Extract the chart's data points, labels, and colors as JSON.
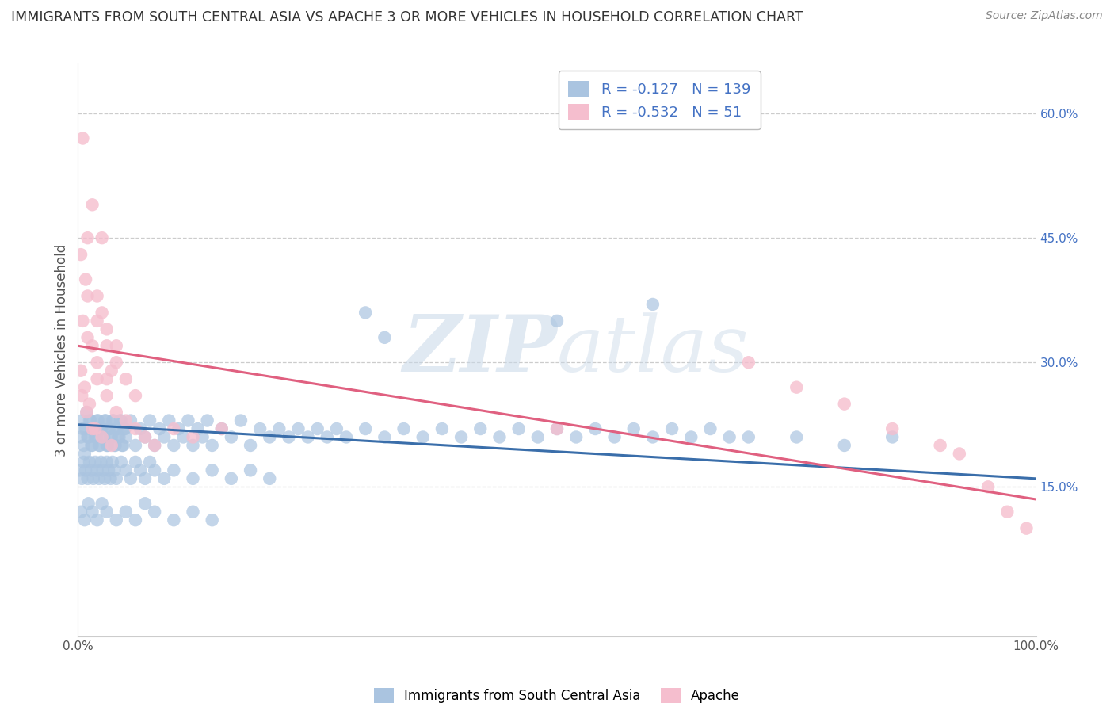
{
  "title": "IMMIGRANTS FROM SOUTH CENTRAL ASIA VS APACHE 3 OR MORE VEHICLES IN HOUSEHOLD CORRELATION CHART",
  "source": "Source: ZipAtlas.com",
  "ylabel": "3 or more Vehicles in Household",
  "watermark": "ZIPatlas",
  "blue_R": -0.127,
  "blue_N": 139,
  "pink_R": -0.532,
  "pink_N": 51,
  "xlim": [
    0.0,
    100.0
  ],
  "ylim": [
    -3.0,
    66.0
  ],
  "ytick_right_labels": [
    "15.0%",
    "30.0%",
    "45.0%",
    "60.0%"
  ],
  "ytick_right_vals": [
    15.0,
    30.0,
    45.0,
    60.0
  ],
  "grid_color": "#cccccc",
  "background_color": "#ffffff",
  "blue_color": "#aac4e0",
  "blue_color_dark": "#3a6eaa",
  "pink_color": "#f5bece",
  "pink_color_dark": "#e06080",
  "blue_scatter": [
    [
      0.5,
      22.0
    ],
    [
      0.7,
      19.0
    ],
    [
      0.9,
      24.0
    ],
    [
      1.1,
      21.0
    ],
    [
      1.3,
      23.0
    ],
    [
      1.5,
      20.0
    ],
    [
      1.7,
      22.0
    ],
    [
      1.9,
      21.0
    ],
    [
      2.1,
      23.0
    ],
    [
      2.3,
      20.0
    ],
    [
      2.5,
      22.0
    ],
    [
      2.7,
      21.0
    ],
    [
      2.9,
      23.0
    ],
    [
      3.1,
      20.0
    ],
    [
      3.3,
      22.0
    ],
    [
      3.5,
      21.0
    ],
    [
      3.7,
      23.0
    ],
    [
      3.9,
      20.0
    ],
    [
      4.1,
      22.0
    ],
    [
      4.3,
      21.0
    ],
    [
      4.5,
      23.0
    ],
    [
      4.7,
      20.0
    ],
    [
      4.9,
      22.0
    ],
    [
      0.3,
      21.0
    ],
    [
      0.4,
      23.0
    ],
    [
      0.6,
      20.0
    ],
    [
      0.8,
      22.0
    ],
    [
      1.0,
      21.0
    ],
    [
      1.2,
      23.0
    ],
    [
      1.4,
      20.0
    ],
    [
      1.6,
      22.0
    ],
    [
      1.8,
      21.0
    ],
    [
      2.0,
      23.0
    ],
    [
      2.2,
      20.0
    ],
    [
      2.4,
      22.0
    ],
    [
      2.6,
      21.0
    ],
    [
      2.8,
      23.0
    ],
    [
      3.0,
      20.0
    ],
    [
      3.2,
      22.0
    ],
    [
      3.4,
      21.0
    ],
    [
      3.6,
      23.0
    ],
    [
      3.8,
      20.0
    ],
    [
      4.0,
      22.0
    ],
    [
      4.2,
      21.0
    ],
    [
      4.4,
      23.0
    ],
    [
      4.6,
      20.0
    ],
    [
      4.8,
      22.0
    ],
    [
      5.0,
      21.0
    ],
    [
      5.5,
      23.0
    ],
    [
      6.0,
      20.0
    ],
    [
      6.5,
      22.0
    ],
    [
      7.0,
      21.0
    ],
    [
      7.5,
      23.0
    ],
    [
      8.0,
      20.0
    ],
    [
      8.5,
      22.0
    ],
    [
      9.0,
      21.0
    ],
    [
      9.5,
      23.0
    ],
    [
      10.0,
      20.0
    ],
    [
      10.5,
      22.0
    ],
    [
      11.0,
      21.0
    ],
    [
      11.5,
      23.0
    ],
    [
      12.0,
      20.0
    ],
    [
      12.5,
      22.0
    ],
    [
      13.0,
      21.0
    ],
    [
      13.5,
      23.0
    ],
    [
      14.0,
      20.0
    ],
    [
      15.0,
      22.0
    ],
    [
      16.0,
      21.0
    ],
    [
      17.0,
      23.0
    ],
    [
      18.0,
      20.0
    ],
    [
      19.0,
      22.0
    ],
    [
      20.0,
      21.0
    ],
    [
      21.0,
      22.0
    ],
    [
      22.0,
      21.0
    ],
    [
      23.0,
      22.0
    ],
    [
      24.0,
      21.0
    ],
    [
      25.0,
      22.0
    ],
    [
      26.0,
      21.0
    ],
    [
      27.0,
      22.0
    ],
    [
      28.0,
      21.0
    ],
    [
      30.0,
      22.0
    ],
    [
      32.0,
      21.0
    ],
    [
      34.0,
      22.0
    ],
    [
      36.0,
      21.0
    ],
    [
      38.0,
      22.0
    ],
    [
      40.0,
      21.0
    ],
    [
      42.0,
      22.0
    ],
    [
      44.0,
      21.0
    ],
    [
      46.0,
      22.0
    ],
    [
      48.0,
      21.0
    ],
    [
      50.0,
      22.0
    ],
    [
      52.0,
      21.0
    ],
    [
      54.0,
      22.0
    ],
    [
      56.0,
      21.0
    ],
    [
      58.0,
      22.0
    ],
    [
      60.0,
      21.0
    ],
    [
      62.0,
      22.0
    ],
    [
      64.0,
      21.0
    ],
    [
      66.0,
      22.0
    ],
    [
      68.0,
      21.0
    ],
    [
      0.2,
      17.0
    ],
    [
      0.4,
      16.0
    ],
    [
      0.6,
      18.0
    ],
    [
      0.8,
      17.0
    ],
    [
      1.0,
      16.0
    ],
    [
      1.2,
      18.0
    ],
    [
      1.4,
      17.0
    ],
    [
      1.6,
      16.0
    ],
    [
      1.8,
      18.0
    ],
    [
      2.0,
      17.0
    ],
    [
      2.2,
      16.0
    ],
    [
      2.4,
      18.0
    ],
    [
      2.6,
      17.0
    ],
    [
      2.8,
      16.0
    ],
    [
      3.0,
      18.0
    ],
    [
      3.2,
      17.0
    ],
    [
      3.4,
      16.0
    ],
    [
      3.6,
      18.0
    ],
    [
      3.8,
      17.0
    ],
    [
      4.0,
      16.0
    ],
    [
      4.5,
      18.0
    ],
    [
      5.0,
      17.0
    ],
    [
      5.5,
      16.0
    ],
    [
      6.0,
      18.0
    ],
    [
      6.5,
      17.0
    ],
    [
      7.0,
      16.0
    ],
    [
      7.5,
      18.0
    ],
    [
      8.0,
      17.0
    ],
    [
      9.0,
      16.0
    ],
    [
      10.0,
      17.0
    ],
    [
      12.0,
      16.0
    ],
    [
      14.0,
      17.0
    ],
    [
      16.0,
      16.0
    ],
    [
      18.0,
      17.0
    ],
    [
      20.0,
      16.0
    ],
    [
      0.3,
      12.0
    ],
    [
      0.7,
      11.0
    ],
    [
      1.1,
      13.0
    ],
    [
      1.5,
      12.0
    ],
    [
      2.0,
      11.0
    ],
    [
      2.5,
      13.0
    ],
    [
      3.0,
      12.0
    ],
    [
      4.0,
      11.0
    ],
    [
      5.0,
      12.0
    ],
    [
      6.0,
      11.0
    ],
    [
      7.0,
      13.0
    ],
    [
      8.0,
      12.0
    ],
    [
      10.0,
      11.0
    ],
    [
      12.0,
      12.0
    ],
    [
      14.0,
      11.0
    ],
    [
      30.0,
      36.0
    ],
    [
      32.0,
      33.0
    ],
    [
      70.0,
      21.0
    ],
    [
      75.0,
      21.0
    ],
    [
      80.0,
      20.0
    ],
    [
      85.0,
      21.0
    ],
    [
      60.0,
      37.0
    ],
    [
      50.0,
      35.0
    ]
  ],
  "pink_scatter": [
    [
      0.5,
      57.0
    ],
    [
      1.5,
      49.0
    ],
    [
      1.0,
      45.0
    ],
    [
      3.0,
      34.0
    ],
    [
      2.0,
      38.0
    ],
    [
      4.0,
      32.0
    ],
    [
      0.3,
      43.0
    ],
    [
      0.8,
      40.0
    ],
    [
      2.5,
      36.0
    ],
    [
      1.5,
      32.0
    ],
    [
      2.0,
      30.0
    ],
    [
      3.5,
      29.0
    ],
    [
      0.5,
      35.0
    ],
    [
      1.0,
      33.0
    ],
    [
      2.0,
      28.0
    ],
    [
      0.3,
      29.0
    ],
    [
      0.7,
      27.0
    ],
    [
      1.2,
      25.0
    ],
    [
      3.0,
      26.0
    ],
    [
      4.0,
      24.0
    ],
    [
      5.0,
      23.0
    ],
    [
      1.5,
      22.0
    ],
    [
      2.5,
      21.0
    ],
    [
      3.5,
      20.0
    ],
    [
      0.4,
      26.0
    ],
    [
      0.9,
      24.0
    ],
    [
      1.8,
      22.0
    ],
    [
      6.0,
      22.0
    ],
    [
      7.0,
      21.0
    ],
    [
      8.0,
      20.0
    ],
    [
      4.0,
      30.0
    ],
    [
      5.0,
      28.0
    ],
    [
      6.0,
      26.0
    ],
    [
      1.0,
      38.0
    ],
    [
      2.0,
      35.0
    ],
    [
      3.0,
      32.0
    ],
    [
      10.0,
      22.0
    ],
    [
      12.0,
      21.0
    ],
    [
      15.0,
      22.0
    ],
    [
      2.5,
      45.0
    ],
    [
      3.0,
      28.0
    ],
    [
      70.0,
      30.0
    ],
    [
      75.0,
      27.0
    ],
    [
      80.0,
      25.0
    ],
    [
      85.0,
      22.0
    ],
    [
      90.0,
      20.0
    ],
    [
      92.0,
      19.0
    ],
    [
      95.0,
      15.0
    ],
    [
      97.0,
      12.0
    ],
    [
      99.0,
      10.0
    ],
    [
      50.0,
      22.0
    ]
  ],
  "blue_line_x": [
    0.0,
    100.0
  ],
  "blue_line_y": [
    22.5,
    16.0
  ],
  "pink_line_x": [
    0.0,
    100.0
  ],
  "pink_line_y": [
    32.0,
    13.5
  ]
}
